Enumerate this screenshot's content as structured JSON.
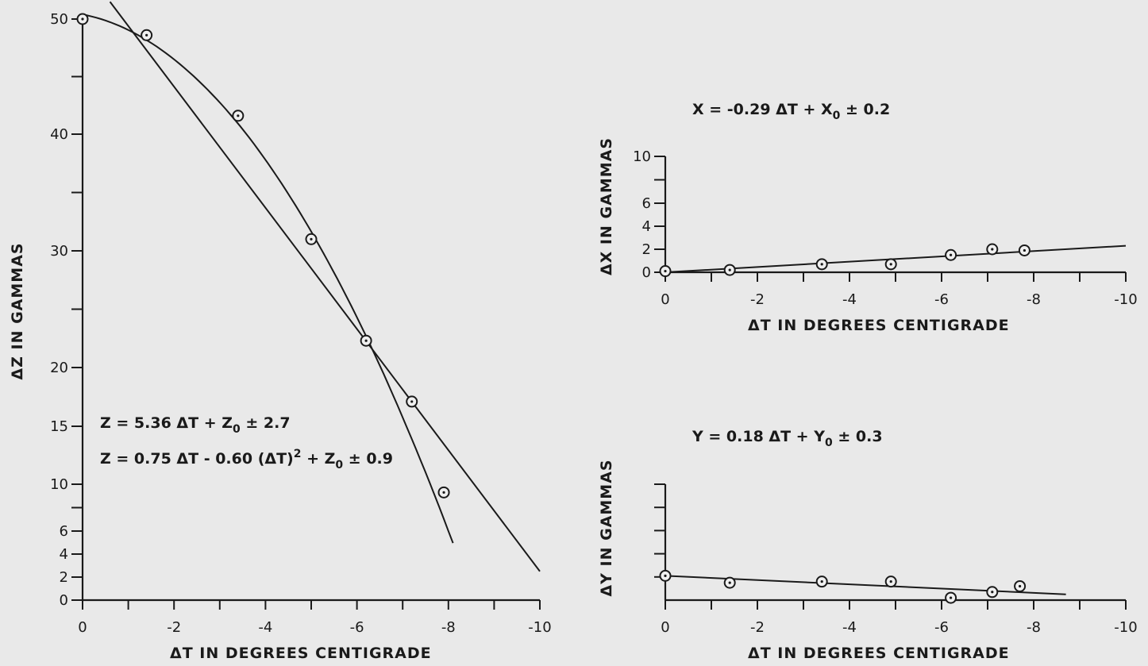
{
  "chart_data": [
    {
      "id": "z",
      "type": "scatter",
      "xlabel": "ΔT IN DEGREES CENTIGRADE",
      "ylabel": "ΔZ IN GAMMAS",
      "xlim": [
        0,
        -10
      ],
      "ylim": [
        0,
        50
      ],
      "xticks": [
        0,
        -2,
        -4,
        -6,
        -8,
        -10
      ],
      "xtick_labels": [
        "0",
        "-2",
        "-4",
        "-6",
        "-8",
        "-10"
      ],
      "yticks": [
        0,
        2,
        4,
        6,
        10,
        15,
        20,
        30,
        40,
        50
      ],
      "ytick_labels": [
        "0",
        "2",
        "4",
        "6",
        "10",
        "15",
        "20",
        "30",
        "40",
        "50"
      ],
      "points": [
        {
          "x": 0.0,
          "y": 50.0
        },
        {
          "x": -1.4,
          "y": 48.6
        },
        {
          "x": -3.4,
          "y": 41.6
        },
        {
          "x": -5.0,
          "y": 31.0
        },
        {
          "x": -6.2,
          "y": 22.3
        },
        {
          "x": -7.2,
          "y": 17.1
        },
        {
          "x": -7.9,
          "y": 9.3
        }
      ],
      "equations": [
        "Z = 5.36 ΔT + Z0 ± 2.7",
        "Z = 0.75 ΔT - 0.60 (ΔT)² + Z0 ± 0.9"
      ],
      "fits": [
        {
          "kind": "linear",
          "line_from": {
            "x": -0.6,
            "y": 51.5
          },
          "line_to": {
            "x": -10.0,
            "y": 2.5
          }
        },
        {
          "kind": "quadratic",
          "x_range": [
            0.0,
            -8.1
          ],
          "a": 0.75,
          "b": -0.6,
          "z0": 50.4
        }
      ]
    },
    {
      "id": "x",
      "type": "scatter",
      "xlabel": "ΔT IN DEGREES CENTIGRADE",
      "ylabel": "ΔX IN GAMMAS",
      "xlim": [
        0,
        -10
      ],
      "ylim": [
        0,
        10
      ],
      "xticks": [
        0,
        -2,
        -4,
        -6,
        -8,
        -10
      ],
      "xtick_labels": [
        "0",
        "-2",
        "-4",
        "-6",
        "-8",
        "-10"
      ],
      "yticks": [
        0,
        2,
        4,
        6,
        10
      ],
      "ytick_labels": [
        "0",
        "2",
        "4",
        "6",
        "10"
      ],
      "points": [
        {
          "x": 0.0,
          "y": 0.1
        },
        {
          "x": -1.4,
          "y": 0.2
        },
        {
          "x": -3.4,
          "y": 0.7
        },
        {
          "x": -4.9,
          "y": 0.7
        },
        {
          "x": -6.2,
          "y": 1.5
        },
        {
          "x": -7.1,
          "y": 2.0
        },
        {
          "x": -7.8,
          "y": 1.9
        }
      ],
      "equations": [
        "X = -0.29 ΔT + X0 ± 0.2"
      ],
      "fits": [
        {
          "kind": "linear",
          "line_from": {
            "x": 0.0,
            "y": 0.0
          },
          "line_to": {
            "x": -10.0,
            "y": 2.3
          }
        }
      ]
    },
    {
      "id": "y",
      "type": "scatter",
      "xlabel": "ΔT IN DEGREES CENTIGRADE",
      "ylabel": "ΔY IN GAMMAS",
      "xlim": [
        0,
        -10
      ],
      "ylim": [
        0,
        10
      ],
      "xticks": [
        0,
        -2,
        -4,
        -6,
        -8,
        -10
      ],
      "xtick_labels": [
        "0",
        "-2",
        "-4",
        "-6",
        "-8",
        "-10"
      ],
      "yticks": [],
      "ytick_labels": [],
      "points": [
        {
          "x": 0.0,
          "y": 2.1
        },
        {
          "x": -1.4,
          "y": 1.5
        },
        {
          "x": -3.4,
          "y": 1.6
        },
        {
          "x": -4.9,
          "y": 1.6
        },
        {
          "x": -6.2,
          "y": 0.2
        },
        {
          "x": -7.1,
          "y": 0.7
        },
        {
          "x": -7.7,
          "y": 1.2
        }
      ],
      "equations": [
        "Y = 0.18 ΔT + Y0 ± 0.3"
      ],
      "fits": [
        {
          "kind": "linear",
          "line_from": {
            "x": 0.0,
            "y": 2.1
          },
          "line_to": {
            "x": -8.7,
            "y": 0.5
          }
        }
      ]
    }
  ]
}
